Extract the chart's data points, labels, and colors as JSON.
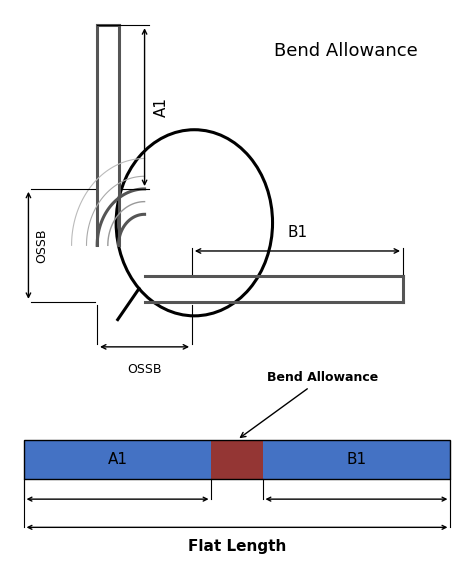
{
  "bg_color": "#ffffff",
  "title_text": "Bend Allowance",
  "bar_blue": "#4472c4",
  "bar_red": "#943634",
  "label_A1": "A1",
  "label_B1": "B1",
  "label_flat": "Flat Length",
  "label_bend": "Bend Allowance",
  "label_ossb_h": "OSSB",
  "label_ossb_w": "OSSB",
  "sheet_color": "#555555",
  "sheet_lw": 2.2,
  "fig_width": 4.74,
  "fig_height": 5.64,
  "dpi": 100
}
